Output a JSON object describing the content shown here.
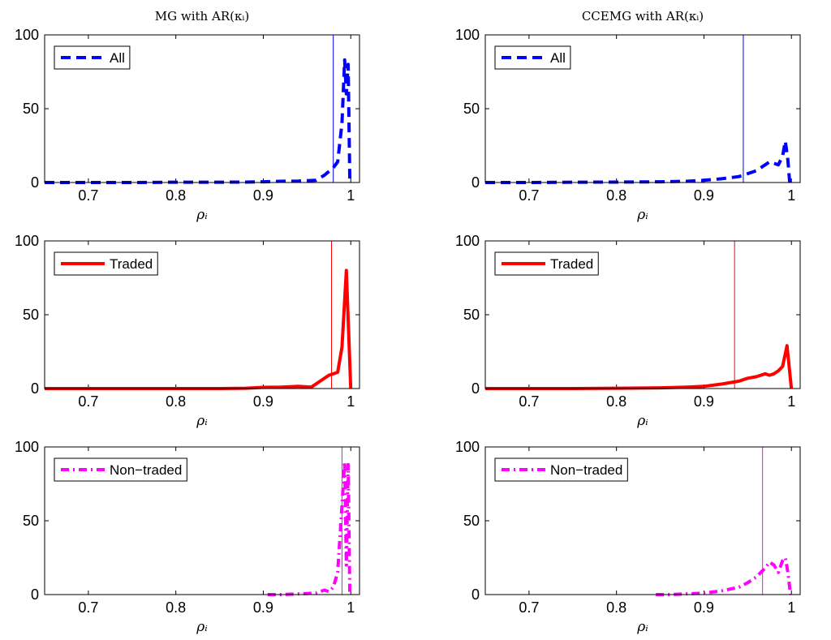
{
  "figure": {
    "column_titles": [
      "MG with AR(κᵢ)",
      "CCEMG with AR(κᵢ)"
    ]
  },
  "chart_data": [
    {
      "type": "line",
      "panel": "MG-All",
      "legend": "All",
      "color": "#0000ff",
      "line_style": "dashed",
      "xlabel": "ρᵢ",
      "xlim": [
        0.65,
        1.01
      ],
      "ylim": [
        0,
        100
      ],
      "xticks": [
        "0.7",
        "0.8",
        "0.9",
        "1"
      ],
      "yticks": [
        "0",
        "50",
        "100"
      ],
      "legend_position": "top-left",
      "vline": 0.98,
      "x": [
        0.65,
        0.7,
        0.75,
        0.8,
        0.85,
        0.88,
        0.9,
        0.92,
        0.94,
        0.96,
        0.97,
        0.98,
        0.985,
        0.99,
        0.993,
        0.995,
        0.997,
        0.999
      ],
      "y": [
        0,
        0,
        0,
        0.2,
        0.2,
        0.3,
        0.5,
        0.8,
        1,
        1.5,
        5,
        10,
        14,
        40,
        83,
        60,
        80,
        0
      ]
    },
    {
      "type": "line",
      "panel": "CCEMG-All",
      "legend": "All",
      "color": "#0000ff",
      "line_style": "dashed",
      "xlabel": "ρᵢ",
      "xlim": [
        0.65,
        1.01
      ],
      "ylim": [
        0,
        100
      ],
      "xticks": [
        "0.7",
        "0.8",
        "0.9",
        "1"
      ],
      "yticks": [
        "0",
        "50",
        "100"
      ],
      "legend_position": "top-left",
      "vline": 0.945,
      "x": [
        0.65,
        0.7,
        0.75,
        0.8,
        0.85,
        0.88,
        0.9,
        0.92,
        0.94,
        0.95,
        0.96,
        0.97,
        0.975,
        0.98,
        0.985,
        0.99,
        0.993,
        0.996,
        0.998
      ],
      "y": [
        0,
        0,
        0.2,
        0.3,
        0.5,
        0.8,
        1.5,
        2.5,
        4,
        6,
        8,
        12,
        14,
        13,
        12,
        18,
        28,
        15,
        0
      ]
    },
    {
      "type": "line",
      "panel": "MG-Traded",
      "legend": "Traded",
      "color": "#ff0000",
      "line_style": "solid",
      "xlabel": "ρᵢ",
      "xlim": [
        0.65,
        1.01
      ],
      "ylim": [
        0,
        100
      ],
      "xticks": [
        "0.7",
        "0.8",
        "0.9",
        "1"
      ],
      "yticks": [
        "0",
        "50",
        "100"
      ],
      "legend_position": "top-left",
      "vline": 0.978,
      "x": [
        0.65,
        0.7,
        0.75,
        0.8,
        0.85,
        0.88,
        0.9,
        0.92,
        0.94,
        0.955,
        0.965,
        0.975,
        0.985,
        0.99,
        0.995,
        1.0
      ],
      "y": [
        0,
        0,
        0,
        0,
        0,
        0.2,
        0.8,
        1,
        1.5,
        1,
        5,
        9,
        11,
        28,
        80,
        0
      ]
    },
    {
      "type": "line",
      "panel": "CCEMG-Traded",
      "legend": "Traded",
      "color": "#ff0000",
      "line_style": "solid",
      "xlabel": "ρᵢ",
      "xlim": [
        0.65,
        1.01
      ],
      "ylim": [
        0,
        100
      ],
      "xticks": [
        "0.7",
        "0.8",
        "0.9",
        "1"
      ],
      "yticks": [
        "0",
        "50",
        "100"
      ],
      "legend_position": "top-left",
      "vline": 0.935,
      "x": [
        0.65,
        0.7,
        0.75,
        0.8,
        0.85,
        0.88,
        0.9,
        0.92,
        0.94,
        0.95,
        0.96,
        0.97,
        0.975,
        0.98,
        0.985,
        0.99,
        0.995,
        1.0
      ],
      "y": [
        0,
        0,
        0,
        0.2,
        0.5,
        1,
        1.5,
        3,
        5,
        7,
        8,
        10,
        9,
        10,
        12,
        15,
        29,
        0
      ]
    },
    {
      "type": "line",
      "panel": "MG-Non-traded",
      "legend": "Non−traded",
      "color": "#ff00ff",
      "line_style": "dashdot",
      "xlabel": "ρᵢ",
      "xlim": [
        0.65,
        1.01
      ],
      "ylim": [
        0,
        100
      ],
      "xticks": [
        "0.7",
        "0.8",
        "0.9",
        "1"
      ],
      "yticks": [
        "0",
        "50",
        "100"
      ],
      "legend_position": "top-left",
      "vline": 0.99,
      "x": [
        0.905,
        0.92,
        0.94,
        0.96,
        0.97,
        0.975,
        0.98,
        0.985,
        0.99,
        0.993,
        0.995,
        0.997,
        0.999
      ],
      "y": [
        0,
        0,
        0.5,
        1,
        3,
        2,
        5,
        15,
        60,
        90,
        20,
        88,
        0
      ]
    },
    {
      "type": "line",
      "panel": "CCEMG-Non-traded",
      "legend": "Non−traded",
      "color": "#ff00ff",
      "line_style": "dashdot",
      "xlabel": "ρᵢ",
      "xlim": [
        0.65,
        1.01
      ],
      "ylim": [
        0,
        100
      ],
      "xticks": [
        "0.7",
        "0.8",
        "0.9",
        "1"
      ],
      "yticks": [
        "0",
        "50",
        "100"
      ],
      "legend_position": "top-left",
      "vline": 0.967,
      "x": [
        0.845,
        0.86,
        0.88,
        0.9,
        0.92,
        0.94,
        0.95,
        0.96,
        0.97,
        0.975,
        0.98,
        0.985,
        0.99,
        0.993,
        0.996,
        0.999
      ],
      "y": [
        0,
        0,
        0.5,
        1,
        2.5,
        5,
        8,
        12,
        18,
        22,
        20,
        15,
        23,
        25,
        15,
        0
      ]
    }
  ]
}
